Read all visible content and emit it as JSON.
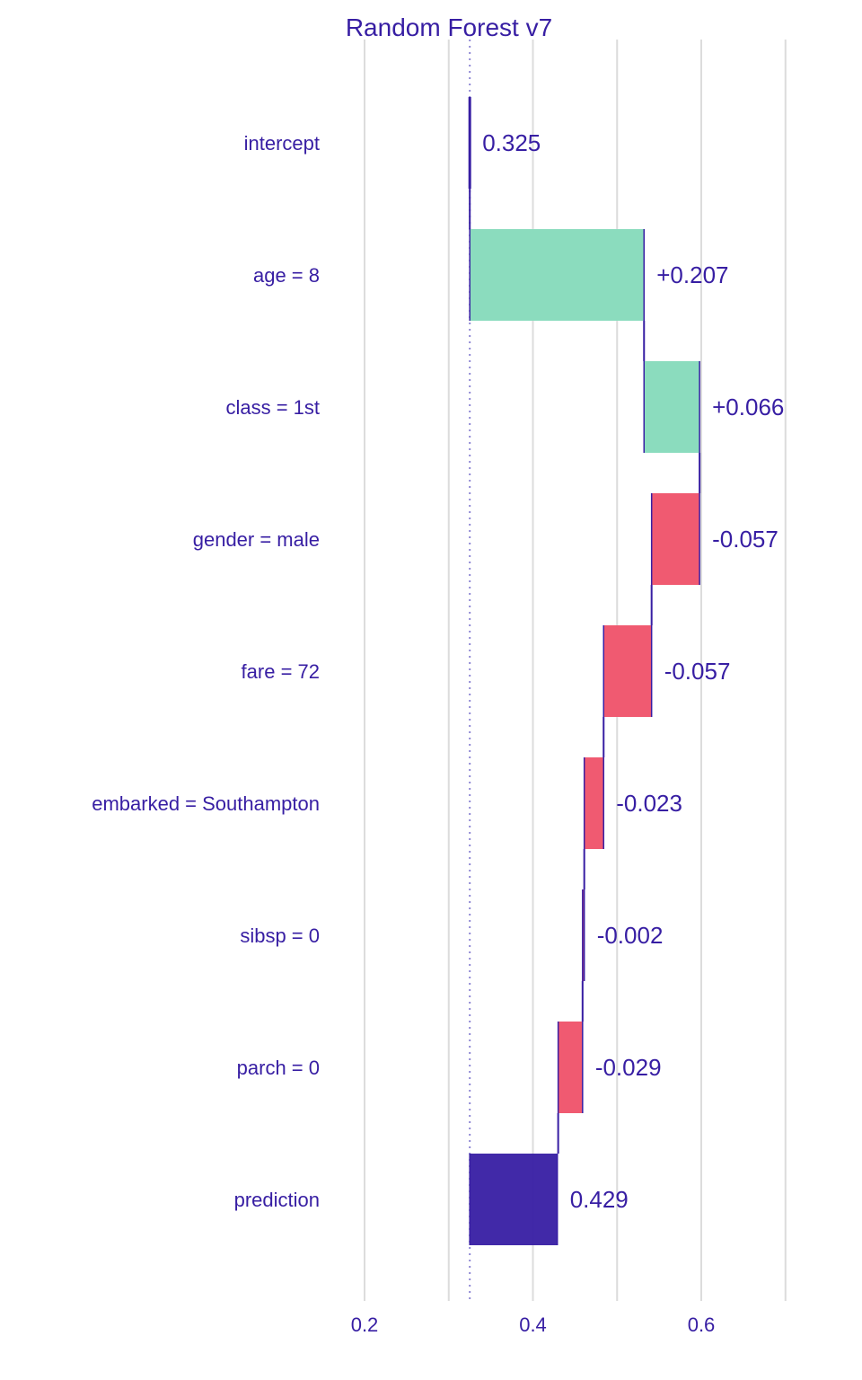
{
  "chart_data": {
    "type": "bar",
    "subtype": "waterfall",
    "title": "Random Forest v7",
    "xlabel": "",
    "ylabel": "",
    "xlim": [
      0.15,
      0.72
    ],
    "xticks": [
      0.2,
      0.4,
      0.6
    ],
    "xtick_labels": [
      "0.2",
      "0.4",
      "0.6"
    ],
    "gridlines_at": [
      0.2,
      0.3,
      0.4,
      0.5,
      0.6,
      0.7
    ],
    "grid": true,
    "baseline": 0.325,
    "colors": {
      "positive": "#8bdcbe",
      "negative": "#f05a71",
      "prediction": "#371ea3",
      "text": "#371ea3",
      "baseline_line": "#8f88d4",
      "grid": "#dcdcdc"
    },
    "categories": [
      "intercept",
      "age = 8",
      "class = 1st",
      "gender = male",
      "fare = 72",
      "embarked = Southampton",
      "sibsp = 0",
      "parch = 0",
      "prediction"
    ],
    "contributions": [
      0.325,
      0.207,
      0.066,
      -0.057,
      -0.057,
      -0.023,
      -0.002,
      -0.029,
      0.429
    ],
    "kinds": [
      "intercept",
      "positive",
      "positive",
      "negative",
      "negative",
      "negative",
      "negative",
      "negative",
      "prediction"
    ],
    "value_labels": [
      "0.325",
      "+0.207",
      "+0.066",
      "-0.057",
      "-0.057",
      "-0.023",
      "-0.002",
      "-0.029",
      "0.429"
    ]
  }
}
